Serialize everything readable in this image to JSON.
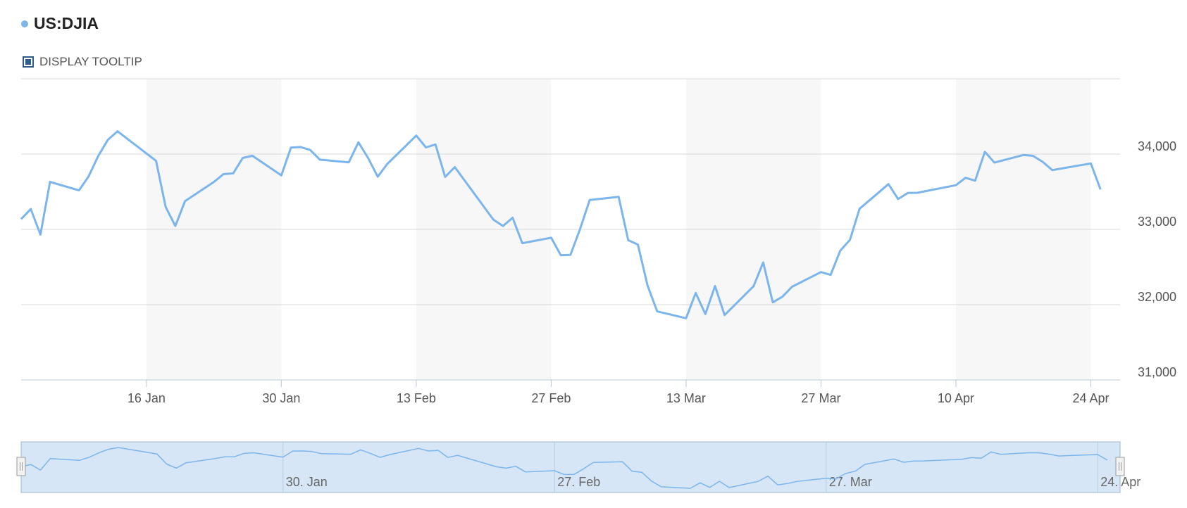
{
  "tooltip_toggle": "DISPLAY TOOLTIP",
  "chart_data": {
    "type": "line",
    "title": "US:DJIA",
    "x": [
      "3 Jan",
      "4 Jan",
      "5 Jan",
      "6 Jan",
      "9 Jan",
      "10 Jan",
      "11 Jan",
      "12 Jan",
      "13 Jan",
      "17 Jan",
      "18 Jan",
      "19 Jan",
      "20 Jan",
      "23 Jan",
      "24 Jan",
      "25 Jan",
      "26 Jan",
      "27 Jan",
      "30 Jan",
      "31 Jan",
      "1 Feb",
      "2 Feb",
      "3 Feb",
      "6 Feb",
      "7 Feb",
      "8 Feb",
      "9 Feb",
      "10 Feb",
      "13 Feb",
      "14 Feb",
      "15 Feb",
      "16 Feb",
      "17 Feb",
      "21 Feb",
      "22 Feb",
      "23 Feb",
      "24 Feb",
      "27 Feb",
      "28 Feb",
      "1 Mar",
      "2 Mar",
      "3 Mar",
      "6 Mar",
      "7 Mar",
      "8 Mar",
      "9 Mar",
      "10 Mar",
      "13 Mar",
      "14 Mar",
      "15 Mar",
      "16 Mar",
      "17 Mar",
      "20 Mar",
      "21 Mar",
      "22 Mar",
      "23 Mar",
      "24 Mar",
      "27 Mar",
      "28 Mar",
      "29 Mar",
      "30 Mar",
      "31 Mar",
      "3 Apr",
      "4 Apr",
      "5 Apr",
      "6 Apr",
      "10 Apr",
      "11 Apr",
      "12 Apr",
      "13 Apr",
      "14 Apr",
      "17 Apr",
      "18 Apr",
      "19 Apr",
      "20 Apr",
      "21 Apr",
      "24 Apr",
      "25 Apr"
    ],
    "series": [
      {
        "name": "US:DJIA",
        "color": "#7cb5ec",
        "values": [
          33136,
          33270,
          32930,
          33631,
          33518,
          33704,
          33974,
          34190,
          34303,
          33910,
          33297,
          33045,
          33375,
          33630,
          33734,
          33744,
          33949,
          33978,
          33717,
          34086,
          34093,
          34054,
          33926,
          33891,
          34156,
          33949,
          33699,
          33869,
          34246,
          34089,
          34128,
          33697,
          33827,
          33130,
          33045,
          33154,
          32817,
          32889,
          32657,
          32662,
          33004,
          33391,
          33432,
          32856,
          32798,
          32255,
          31910,
          31820,
          32155,
          31875,
          32247,
          31862,
          32245,
          32561,
          32031,
          32106,
          32238,
          32433,
          32395,
          32718,
          32860,
          33274,
          33601,
          33403,
          33483,
          33486,
          33587,
          33685,
          33647,
          34030,
          33887,
          33988,
          33977,
          33897,
          33787,
          33809,
          33876,
          33531
        ]
      }
    ],
    "ylim": [
      31000,
      35000
    ],
    "yticks": [
      {
        "value": 31000,
        "label": "31,000"
      },
      {
        "value": 32000,
        "label": "32,000"
      },
      {
        "value": 33000,
        "label": "33,000"
      },
      {
        "value": 34000,
        "label": "34,000"
      }
    ],
    "xticks": [
      "16 Jan",
      "30 Jan",
      "13 Feb",
      "27 Feb",
      "13 Mar",
      "27 Mar",
      "10 Apr",
      "24 Apr"
    ],
    "navigator_ticks": [
      "30. Jan",
      "27. Feb",
      "27. Mar",
      "24. Apr"
    ],
    "grid": true
  }
}
